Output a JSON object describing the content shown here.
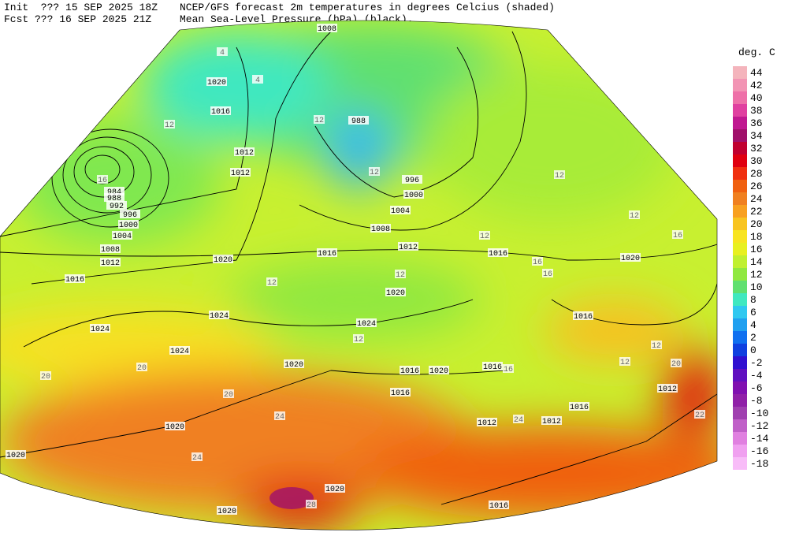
{
  "header": {
    "init": "Init  ??? 15 SEP 2025 18Z",
    "forecast": "Fcst ??? 16 SEP 2025 21Z",
    "title": "NCEP/GFS forecast 2m temperatures in degrees Celcius (shaded)",
    "subtitle": "Mean Sea-Level Pressure (hPa) (black)."
  },
  "legend": {
    "unit": "deg. C",
    "levels": [
      44,
      42,
      40,
      38,
      36,
      34,
      32,
      30,
      28,
      26,
      24,
      22,
      20,
      18,
      16,
      14,
      12,
      10,
      8,
      6,
      4,
      2,
      0,
      -2,
      -4,
      -6,
      -8,
      -10,
      -12,
      -14,
      -16,
      -18
    ],
    "colors": [
      "#f4b4bc",
      "#f294b4",
      "#ee70a8",
      "#e040a0",
      "#c01890",
      "#a0106a",
      "#c00030",
      "#e00010",
      "#f03010",
      "#f06010",
      "#f08020",
      "#f8a020",
      "#f8c420",
      "#f8e420",
      "#e8f020",
      "#c0f030",
      "#90e840",
      "#60e070",
      "#40e8c0",
      "#30c8f0",
      "#20a0f0",
      "#1070f0",
      "#1040e0",
      "#3010d0",
      "#6010c0",
      "#8010b0",
      "#9020a8",
      "#a040b0",
      "#c060c8",
      "#e080e0",
      "#f0a0f0",
      "#f8bcf8"
    ]
  },
  "isobar_labels": [
    "1008",
    "1020",
    "1016",
    "1012",
    "1012",
    "984",
    "988",
    "992",
    "996",
    "1000",
    "1004",
    "1008",
    "1012",
    "1016",
    "1020",
    "1016",
    "988",
    "996",
    "1000",
    "1004",
    "1008",
    "1012",
    "1016",
    "1020",
    "1020",
    "1024",
    "1024",
    "1024",
    "1024",
    "1020",
    "1016",
    "1016",
    "1020",
    "1016",
    "1016",
    "1012",
    "1016",
    "1012",
    "1012",
    "1020",
    "1020",
    "1020",
    "1020",
    "1016"
  ],
  "temperature_labels": [
    "12",
    "12",
    "12",
    "12",
    "16",
    "12",
    "16",
    "16",
    "12",
    "12",
    "12",
    "20",
    "20",
    "20",
    "24",
    "24",
    "24",
    "22",
    "28",
    "12",
    "12",
    "16",
    "20",
    "16",
    "4",
    "4",
    "12"
  ]
}
